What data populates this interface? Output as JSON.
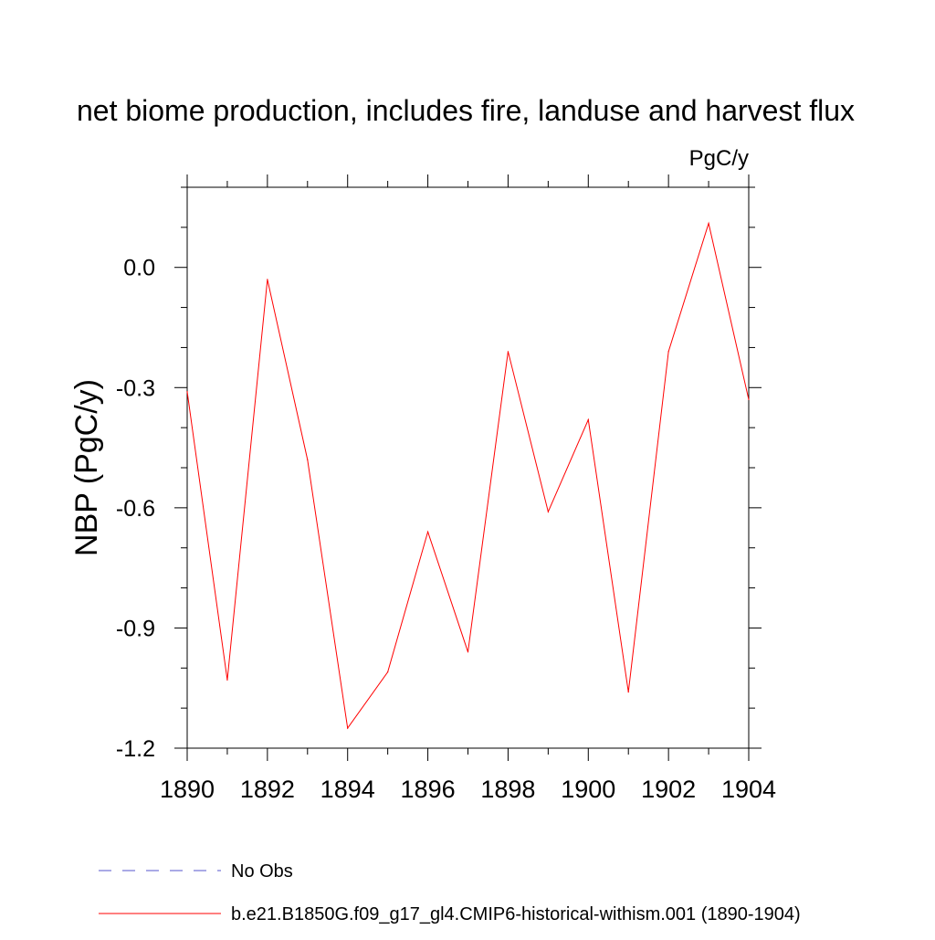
{
  "chart_data": {
    "type": "line",
    "title": "net biome production, includes fire, landuse and harvest flux",
    "units_label": "PgC/y",
    "ylabel": "NBP  (PgC/y)",
    "xlabel": "",
    "xlim": [
      1890,
      1904
    ],
    "ylim": [
      -1.2,
      0.2
    ],
    "x_ticks": [
      "1890",
      "1892",
      "1894",
      "1896",
      "1898",
      "1900",
      "1902",
      "1904"
    ],
    "y_ticks": [
      "0.0",
      "-0.3",
      "-0.6",
      "-0.9",
      "-1.2"
    ],
    "grid": false,
    "series": [
      {
        "name": "b.e21.B1850G.f09_g17_gl4.CMIP6-historical-withism.001 (1890-1904)",
        "color": "#ff0000",
        "style": "solid",
        "x": [
          1890,
          1891,
          1892,
          1893,
          1894,
          1895,
          1896,
          1897,
          1898,
          1899,
          1900,
          1901,
          1902,
          1903,
          1904
        ],
        "y": [
          -0.31,
          -1.03,
          -0.03,
          -0.48,
          -1.15,
          -1.01,
          -0.66,
          -0.96,
          -0.21,
          -0.61,
          -0.38,
          -1.06,
          -0.21,
          0.11,
          -0.33
        ]
      }
    ],
    "legend": {
      "placement": "bottom-left",
      "entries": [
        {
          "label": "No Obs",
          "color": "#5555cc",
          "style": "dashed"
        },
        {
          "label": "b.e21.B1850G.f09_g17_gl4.CMIP6-historical-withism.001 (1890-1904)",
          "color": "#ff0000",
          "style": "solid"
        }
      ]
    }
  }
}
